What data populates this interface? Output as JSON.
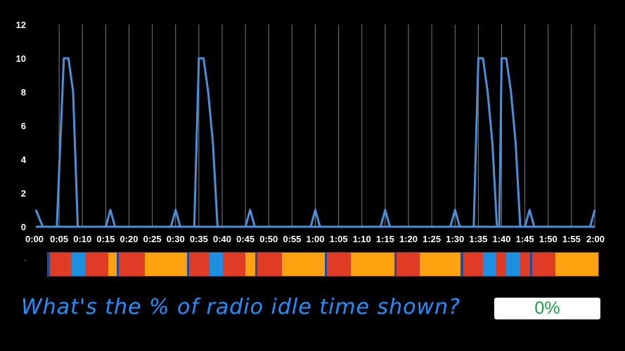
{
  "chart_data": {
    "type": "line",
    "y_ticks": [
      "0",
      "2",
      "4",
      "6",
      "8",
      "10",
      "12"
    ],
    "ylim": [
      0,
      12
    ],
    "x_tick_labels": [
      "0:00",
      "0:05",
      "0:10",
      "0:15",
      "0:20",
      "0:25",
      "0:30",
      "0:35",
      "0:40",
      "0:45",
      "0:50",
      "0:55",
      "1:00",
      "1:05",
      "1:10",
      "1:15",
      "1:20",
      "1:25",
      "1:30",
      "1:35",
      "1:40",
      "1:45",
      "1:50",
      "1:55",
      "2:00"
    ],
    "xlim_seconds": [
      0,
      120
    ],
    "grid": "vertical",
    "series_color": "#4a90d9",
    "x_seconds": [
      0,
      1.5,
      3.5,
      4.5,
      6,
      7,
      8,
      9,
      15,
      16,
      17,
      29,
      30,
      31,
      34,
      35,
      36,
      37,
      38,
      39,
      45,
      46,
      47,
      59,
      60,
      61,
      74,
      75,
      76,
      89,
      90,
      91,
      94,
      95,
      96,
      97,
      98,
      99,
      99.5,
      100,
      101,
      102,
      103,
      104,
      105,
      106,
      107,
      119,
      120
    ],
    "values": [
      1,
      0,
      0,
      0,
      10,
      10,
      8,
      0,
      0,
      1,
      0,
      0,
      1,
      0,
      0,
      10,
      10,
      8,
      5,
      0,
      0,
      1,
      0,
      0,
      1,
      0,
      0,
      1,
      0,
      0,
      1,
      0,
      0,
      10,
      10,
      8,
      5,
      0,
      0,
      10,
      10,
      8,
      5,
      0,
      0,
      1,
      0,
      0,
      1
    ]
  },
  "state_bar": {
    "colors": {
      "red": "#e03b24",
      "blue": "#1d8fe0",
      "orange": "#ffa20f",
      "dark_blue": "#1a4fa0"
    },
    "segments": [
      [
        "dark_blue",
        68,
        71
      ],
      [
        "red",
        71,
        102
      ],
      [
        "blue",
        102,
        121
      ],
      [
        "red",
        121,
        154
      ],
      [
        "orange",
        154,
        166
      ],
      [
        "dark_blue",
        166,
        169
      ],
      [
        "red",
        169,
        172
      ],
      [
        "red",
        172,
        206
      ],
      [
        "orange",
        206,
        266
      ],
      [
        "dark_blue",
        266,
        269
      ],
      [
        "red",
        269,
        298
      ],
      [
        "blue",
        298,
        317
      ],
      [
        "red",
        317,
        349
      ],
      [
        "orange",
        349,
        363
      ],
      [
        "dark_blue",
        363,
        366
      ],
      [
        "red",
        366,
        370
      ],
      [
        "red",
        370,
        401
      ],
      [
        "orange",
        401,
        462
      ],
      [
        "dark_blue",
        462,
        465
      ],
      [
        "red",
        465,
        499
      ],
      [
        "orange",
        499,
        561
      ],
      [
        "dark_blue",
        561,
        564
      ],
      [
        "red",
        564,
        597
      ],
      [
        "orange",
        597,
        655
      ],
      [
        "dark_blue",
        655,
        659
      ],
      [
        "red",
        659,
        662
      ],
      [
        "red",
        662,
        687
      ],
      [
        "blue",
        687,
        705
      ],
      [
        "red",
        705,
        720
      ],
      [
        "blue",
        720,
        740
      ],
      [
        "red",
        740,
        754
      ],
      [
        "dark_blue",
        754,
        757
      ],
      [
        "red",
        757,
        790
      ],
      [
        "orange",
        790,
        851
      ]
    ]
  },
  "question": {
    "text": "What's the % of radio idle time shown?",
    "answer": "0%",
    "text_color": "#1e90ff",
    "answer_color": "#1aa34a"
  }
}
